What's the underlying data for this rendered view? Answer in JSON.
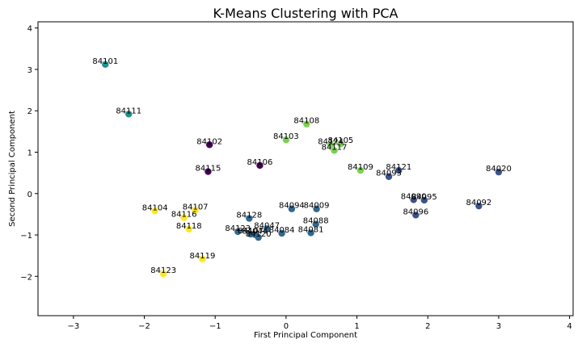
{
  "chart_data": {
    "type": "scatter",
    "title": "K-Means Clustering with PCA",
    "xlabel": "First Principal Component",
    "ylabel": "Second Principal Component",
    "xlim": [
      -3.5,
      4.05
    ],
    "ylim": [
      -2.95,
      4.15
    ],
    "xticks": [
      -3,
      -2,
      -1,
      0,
      1,
      2,
      3,
      4
    ],
    "yticks": [
      -2,
      -1,
      0,
      1,
      2,
      3,
      4
    ],
    "grid": false,
    "points": [
      {
        "label": "84101",
        "x": -2.55,
        "y": 3.12,
        "color": "#21918c"
      },
      {
        "label": "84111",
        "x": -2.22,
        "y": 1.92,
        "color": "#21918c"
      },
      {
        "label": "84102",
        "x": -1.08,
        "y": 1.18,
        "color": "#440154"
      },
      {
        "label": "84115",
        "x": -1.1,
        "y": 0.53,
        "color": "#440154"
      },
      {
        "label": "84106",
        "x": -0.37,
        "y": 0.68,
        "color": "#440154"
      },
      {
        "label": "84108",
        "x": 0.29,
        "y": 1.68,
        "color": "#7ad151"
      },
      {
        "label": "84103",
        "x": 0.0,
        "y": 1.3,
        "color": "#7ad151"
      },
      {
        "label": "84124",
        "x": 0.63,
        "y": 1.18,
        "color": "#7ad151"
      },
      {
        "label": "84105",
        "x": 0.77,
        "y": 1.2,
        "color": "#7ad151"
      },
      {
        "label": "84117",
        "x": 0.68,
        "y": 1.04,
        "color": "#7ad151"
      },
      {
        "label": "84109",
        "x": 1.05,
        "y": 0.56,
        "color": "#7ad151"
      },
      {
        "label": "84121",
        "x": 1.59,
        "y": 0.56,
        "color": "#3b528b"
      },
      {
        "label": "84093",
        "x": 1.45,
        "y": 0.41,
        "color": "#3b528b"
      },
      {
        "label": "84020",
        "x": 3.0,
        "y": 0.52,
        "color": "#3b528b"
      },
      {
        "label": "84090",
        "x": 1.8,
        "y": -0.15,
        "color": "#3b528b"
      },
      {
        "label": "84095",
        "x": 1.95,
        "y": -0.16,
        "color": "#3b528b"
      },
      {
        "label": "84092",
        "x": 2.72,
        "y": -0.3,
        "color": "#3b528b"
      },
      {
        "label": "84096",
        "x": 1.83,
        "y": -0.52,
        "color": "#3b528b"
      },
      {
        "label": "84094",
        "x": 0.08,
        "y": -0.37,
        "color": "#31688e"
      },
      {
        "label": "84009",
        "x": 0.43,
        "y": -0.37,
        "color": "#31688e"
      },
      {
        "label": "84088",
        "x": 0.42,
        "y": -0.74,
        "color": "#31688e"
      },
      {
        "label": "84081",
        "x": 0.35,
        "y": -0.95,
        "color": "#31688e"
      },
      {
        "label": "84128",
        "x": -0.52,
        "y": -0.6,
        "color": "#31688e"
      },
      {
        "label": "84047",
        "x": -0.27,
        "y": -0.85,
        "color": "#31688e"
      },
      {
        "label": "84084",
        "x": -0.06,
        "y": -0.96,
        "color": "#31688e"
      },
      {
        "label": "84123",
        "x": -0.68,
        "y": -0.92,
        "color": "#31688e"
      },
      {
        "label": "84107",
        "x": -0.5,
        "y": -0.98,
        "color": "#31688e"
      },
      {
        "label": "84044",
        "x": -0.44,
        "y": -0.99,
        "color": "#31688e"
      },
      {
        "label": "84120",
        "x": -0.39,
        "y": -1.06,
        "color": "#31688e"
      },
      {
        "label": "84104",
        "x": -1.85,
        "y": -0.42,
        "color": "#fde725"
      },
      {
        "label": "84107",
        "x": -1.28,
        "y": -0.4,
        "color": "#fde725"
      },
      {
        "label": "84116",
        "x": -1.44,
        "y": -0.58,
        "color": "#fde725"
      },
      {
        "label": "84118",
        "x": -1.37,
        "y": -0.86,
        "color": "#fde725"
      },
      {
        "label": "84119",
        "x": -1.18,
        "y": -1.58,
        "color": "#fde725"
      },
      {
        "label": "84123",
        "x": -1.73,
        "y": -1.94,
        "color": "#fde725"
      }
    ]
  }
}
